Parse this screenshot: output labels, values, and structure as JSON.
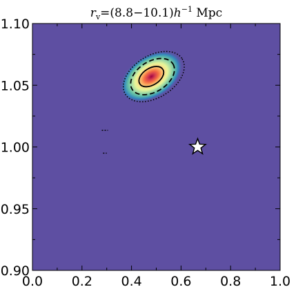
{
  "chart_data": {
    "type": "heatmap",
    "title": "r_v = (8.8–10.1) h^-1 Mpc",
    "title_parts": {
      "r": "r",
      "sub": "v",
      "eq": "=(8.8−10.1)",
      "h": "h",
      "exp": "−1",
      "unit": " Mpc"
    },
    "xlabel": "",
    "ylabel": "",
    "xlim": [
      0.0,
      1.0
    ],
    "ylim": [
      0.9,
      1.1
    ],
    "x_ticks": [
      0.0,
      0.2,
      0.4,
      0.6,
      0.8,
      1.0
    ],
    "x_tick_labels": [
      "0.0",
      "0.2",
      "0.4",
      "0.6",
      "0.8",
      "1.0"
    ],
    "y_ticks": [
      0.9,
      0.95,
      1.0,
      1.05,
      1.1
    ],
    "y_tick_labels": [
      "0.90",
      "0.95",
      "1.00",
      "1.05",
      "1.10"
    ],
    "background_color": "#5e4fa2",
    "colormap": [
      "#5e4fa2",
      "#3288bd",
      "#66c2a5",
      "#abdda4",
      "#e6f598",
      "#fee08b",
      "#fdae61",
      "#f46d43",
      "#d53e4f",
      "#9e0142"
    ],
    "density_peak": {
      "x": 0.48,
      "y": 1.057
    },
    "contours": [
      {
        "level": "inner",
        "style": "solid",
        "center": [
          0.48,
          1.057
        ],
        "semi_axes": [
          0.055,
          0.0068
        ],
        "angle_deg": 32
      },
      {
        "level": "middle",
        "style": "dashed",
        "center": [
          0.485,
          1.057
        ],
        "semi_axes": [
          0.097,
          0.0123
        ],
        "angle_deg": 32
      },
      {
        "level": "outer",
        "style": "dotted",
        "center": [
          0.49,
          1.057
        ],
        "semi_axes": [
          0.135,
          0.017
        ],
        "angle_deg": 32
      }
    ],
    "spurious_contours": [
      {
        "style": "dashed",
        "points": [
          [
            0.28,
            1.0135
          ],
          [
            0.305,
            1.0135
          ]
        ]
      },
      {
        "style": "dashed",
        "points": [
          [
            0.285,
            0.995
          ],
          [
            0.3,
            0.995
          ]
        ]
      }
    ],
    "marker": {
      "type": "star",
      "x": 0.667,
      "y": 1.0,
      "fill": "#ffffff",
      "edge": "#000000"
    }
  }
}
